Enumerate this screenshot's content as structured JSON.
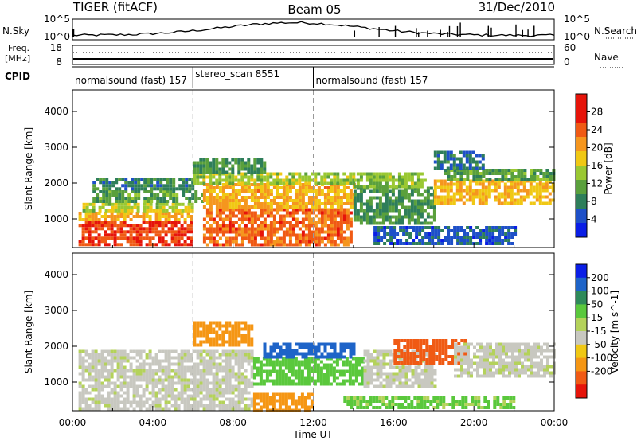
{
  "header": {
    "station": "TIGER (fitACF)",
    "beam": "Beam 05",
    "date": "31/Dec/2010"
  },
  "top_panels": {
    "nsky": {
      "label": "N.Sky",
      "left_ticks": [
        "10^5",
        "10^0"
      ],
      "right_ticks": [
        "10^5",
        "10^0"
      ],
      "right_label": "N.Search"
    },
    "freq": {
      "label_line1": "Freq.",
      "label_line2": "[MHz]",
      "left_ticks": [
        "18",
        "8"
      ],
      "right_ticks": [
        "60",
        "0"
      ],
      "right_label": "Nave"
    },
    "cpid": {
      "label": "CPID",
      "segments": [
        {
          "name": "normalsound (fast) 157",
          "start_hour": 0,
          "end_hour": 6
        },
        {
          "name": "stereo_scan 8551",
          "start_hour": 6,
          "end_hour": 12
        },
        {
          "name": "normalsound (fast) 157",
          "start_hour": 12,
          "end_hour": 24
        }
      ]
    }
  },
  "chart_data": [
    {
      "type": "heatmap",
      "name": "power",
      "ylabel": "Slant Range [km]",
      "yticks": [
        1000,
        2000,
        3000,
        4000
      ],
      "ylim": [
        200,
        4600
      ],
      "xlim": [
        0,
        24
      ],
      "colorbar": {
        "label": "Power [dB]",
        "ticks": [
          "4",
          "8",
          "12",
          "16",
          "20",
          "24",
          "28"
        ],
        "range": [
          0,
          32
        ],
        "colors": [
          "#0a1ee6",
          "#1e50c8",
          "#2e7e5a",
          "#5aa03c",
          "#9ac832",
          "#f0c814",
          "#f5961e",
          "#f05a14",
          "#e6140a",
          "#e6140a"
        ]
      },
      "regions": [
        {
          "t0": 0.3,
          "t1": 6.0,
          "r0": 250,
          "r1": 950,
          "value": 28
        },
        {
          "t0": 0.3,
          "t1": 6.0,
          "r0": 950,
          "r1": 1200,
          "value": 22
        },
        {
          "t0": 0.5,
          "t1": 6.0,
          "r0": 1200,
          "r1": 1450,
          "value": 17
        },
        {
          "t0": 1.0,
          "t1": 6.5,
          "r0": 1450,
          "r1": 1800,
          "value": 12
        },
        {
          "t0": 1.0,
          "t1": 6.0,
          "r0": 1800,
          "r1": 2150,
          "value": 9
        },
        {
          "t0": 6.5,
          "t1": 13.8,
          "r0": 300,
          "r1": 1300,
          "value": 26
        },
        {
          "t0": 6.5,
          "t1": 14.0,
          "r0": 1300,
          "r1": 2000,
          "value": 22
        },
        {
          "t0": 6.0,
          "t1": 14.0,
          "r0": 2000,
          "r1": 2300,
          "value": 16
        },
        {
          "t0": 6.0,
          "t1": 9.5,
          "r0": 2300,
          "r1": 2700,
          "value": 11
        },
        {
          "t0": 14.0,
          "t1": 18.0,
          "r0": 900,
          "r1": 1900,
          "value": 11
        },
        {
          "t0": 14.0,
          "t1": 17.5,
          "r0": 1900,
          "r1": 2300,
          "value": 15
        },
        {
          "t0": 15.0,
          "t1": 22.0,
          "r0": 300,
          "r1": 800,
          "value": 6
        },
        {
          "t0": 18.0,
          "t1": 24.0,
          "r0": 1400,
          "r1": 2100,
          "value": 21
        },
        {
          "t0": 18.5,
          "t1": 24.0,
          "r0": 2100,
          "r1": 2400,
          "value": 12
        },
        {
          "t0": 18.0,
          "t1": 20.5,
          "r0": 2400,
          "r1": 2900,
          "value": 8
        }
      ]
    },
    {
      "type": "heatmap",
      "name": "velocity",
      "ylabel": "Slant Range [km]",
      "xlabel": "Time UT",
      "xticks": [
        "00:00",
        "04:00",
        "08:00",
        "12:00",
        "16:00",
        "20:00",
        "00:00"
      ],
      "xtick_hours": [
        0,
        4,
        8,
        12,
        16,
        20,
        24
      ],
      "yticks": [
        1000,
        2000,
        3000,
        4000
      ],
      "ylim": [
        200,
        4600
      ],
      "xlim": [
        0,
        24
      ],
      "colorbar": {
        "label": "Velocity [m s^-1]",
        "ticks": [
          "200",
          "100",
          "50",
          "15",
          "-15",
          "-50",
          "-100",
          "-200"
        ],
        "colors": [
          "#0a1ee6",
          "#1e64c8",
          "#2e8a5a",
          "#5ac83c",
          "#b4d25a",
          "#c8c8c0",
          "#f0c814",
          "#f59614",
          "#f05a14",
          "#e6140a"
        ]
      },
      "regions": [
        {
          "t0": 0.3,
          "t1": 9.0,
          "r0": 250,
          "r1": 1900,
          "value": 0
        },
        {
          "t0": 9.0,
          "t1": 14.5,
          "r0": 900,
          "r1": 1700,
          "value": 40
        },
        {
          "t0": 9.5,
          "t1": 14.0,
          "r0": 1700,
          "r1": 2100,
          "value": 180
        },
        {
          "t0": 9.0,
          "t1": 12.0,
          "r0": 200,
          "r1": 700,
          "value": -90
        },
        {
          "t0": 13.5,
          "t1": 22.0,
          "r0": 300,
          "r1": 600,
          "value": 20
        },
        {
          "t0": 14.5,
          "t1": 18.0,
          "r0": 900,
          "r1": 1900,
          "value": 0
        },
        {
          "t0": 16.0,
          "t1": 19.5,
          "r0": 1500,
          "r1": 2200,
          "value": -150
        },
        {
          "t0": 19.0,
          "t1": 24.0,
          "r0": 1200,
          "r1": 2100,
          "value": 0
        },
        {
          "t0": 6.0,
          "t1": 9.0,
          "r0": 2000,
          "r1": 2700,
          "value": -60
        }
      ]
    }
  ]
}
